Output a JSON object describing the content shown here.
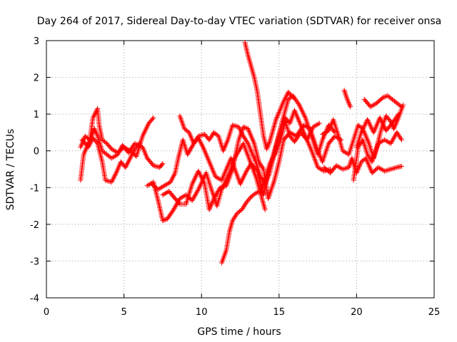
{
  "chart_data": {
    "type": "scatter",
    "title": "Day 264 of 2017, Sidereal Day-to-day VTEC variation (SDTVAR) for receiver onsa",
    "xlabel": "GPS time / hours",
    "ylabel": "SDTVAR / TECUs",
    "xlim": [
      0,
      25
    ],
    "ylim": [
      -4,
      3
    ],
    "xticks": [
      "0",
      "5",
      "10",
      "15",
      "20",
      "25"
    ],
    "yticks": [
      "-4",
      "-3",
      "-2",
      "-1",
      "0",
      "1",
      "2",
      "3"
    ],
    "grid": true,
    "legend": "none",
    "marker": "+",
    "series_color": "#ff0000",
    "series": [
      {
        "points": [
          [
            2.2,
            0.1
          ],
          [
            2.5,
            0.4
          ],
          [
            2.8,
            0.3
          ],
          [
            3.0,
            0.9
          ],
          [
            3.3,
            1.15
          ],
          [
            3.4,
            0.7
          ],
          [
            3.6,
            0.3
          ],
          [
            3.9,
            0.2
          ],
          [
            4.2,
            0.05
          ],
          [
            4.6,
            -0.05
          ],
          [
            5.0,
            0.1
          ],
          [
            5.4,
            0.0
          ],
          [
            5.8,
            -0.15
          ],
          [
            6.2,
            0.4
          ],
          [
            6.6,
            0.75
          ],
          [
            6.9,
            0.9
          ]
        ]
      },
      {
        "points": [
          [
            2.2,
            -0.8
          ],
          [
            2.4,
            -0.1
          ],
          [
            2.7,
            0.2
          ],
          [
            3.1,
            0.6
          ],
          [
            3.3,
            0.4
          ],
          [
            3.6,
            0.0
          ],
          [
            3.9,
            -0.1
          ],
          [
            4.2,
            -0.2
          ],
          [
            4.6,
            -0.1
          ],
          [
            4.9,
            0.15
          ],
          [
            5.3,
            -0.05
          ],
          [
            5.7,
            0.2
          ],
          [
            6.2,
            0.1
          ],
          [
            6.5,
            -0.2
          ],
          [
            6.9,
            -0.4
          ],
          [
            7.3,
            -0.45
          ],
          [
            7.5,
            -0.35
          ]
        ]
      },
      {
        "points": [
          [
            2.3,
            0.3
          ],
          [
            2.7,
            0.1
          ],
          [
            3.0,
            0.35
          ],
          [
            3.3,
            0.2
          ],
          [
            3.6,
            -0.3
          ],
          [
            3.8,
            -0.8
          ],
          [
            4.2,
            -0.85
          ],
          [
            4.5,
            -0.6
          ],
          [
            4.8,
            -0.3
          ],
          [
            5.1,
            -0.45
          ],
          [
            5.4,
            -0.2
          ],
          [
            5.7,
            0.05
          ],
          [
            6.0,
            0.2
          ]
        ]
      },
      {
        "points": [
          [
            6.5,
            -0.95
          ],
          [
            6.9,
            -0.85
          ],
          [
            7.2,
            -1.35
          ],
          [
            7.5,
            -1.9
          ],
          [
            7.8,
            -1.85
          ],
          [
            8.2,
            -1.6
          ],
          [
            8.6,
            -1.3
          ],
          [
            9.0,
            -1.2
          ],
          [
            9.4,
            -1.35
          ],
          [
            9.8,
            -1.05
          ],
          [
            10.3,
            -0.6
          ],
          [
            10.6,
            -1.0
          ],
          [
            11.0,
            -1.5
          ],
          [
            11.3,
            -1.05
          ],
          [
            11.8,
            -0.6
          ],
          [
            12.2,
            -0.15
          ],
          [
            12.7,
            0.2
          ],
          [
            13.1,
            -0.25
          ],
          [
            13.5,
            -0.7
          ],
          [
            13.9,
            -1.3
          ],
          [
            14.1,
            -1.6
          ]
        ]
      },
      {
        "points": [
          [
            6.8,
            -0.9
          ],
          [
            7.2,
            -1.05
          ],
          [
            7.6,
            -0.95
          ],
          [
            8.0,
            -0.85
          ],
          [
            8.3,
            -0.6
          ],
          [
            8.5,
            -0.2
          ],
          [
            8.8,
            0.3
          ],
          [
            9.1,
            -0.1
          ],
          [
            9.5,
            0.2
          ],
          [
            9.8,
            0.35
          ],
          [
            10.1,
            0.1
          ],
          [
            10.5,
            -0.3
          ],
          [
            10.9,
            -0.7
          ],
          [
            11.3,
            -0.8
          ],
          [
            11.6,
            -0.5
          ],
          [
            11.9,
            -0.2
          ],
          [
            12.2,
            -0.55
          ],
          [
            12.5,
            -0.9
          ],
          [
            12.9,
            -0.55
          ],
          [
            13.2,
            -0.35
          ],
          [
            13.6,
            -0.55
          ],
          [
            14.0,
            -1.2
          ],
          [
            14.3,
            -0.6
          ],
          [
            14.7,
            0.0
          ],
          [
            15.1,
            0.6
          ],
          [
            15.4,
            0.9
          ],
          [
            15.7,
            0.75
          ],
          [
            16.0,
            1.1
          ],
          [
            16.3,
            0.8
          ],
          [
            16.7,
            0.4
          ],
          [
            17.1,
            0.0
          ],
          [
            17.5,
            -0.45
          ],
          [
            17.9,
            -0.55
          ],
          [
            18.3,
            -0.5
          ]
        ]
      },
      {
        "points": [
          [
            7.5,
            -1.2
          ],
          [
            7.9,
            -1.1
          ],
          [
            8.3,
            -1.3
          ],
          [
            8.6,
            -1.45
          ],
          [
            9.0,
            -1.45
          ],
          [
            9.4,
            -0.9
          ],
          [
            9.8,
            -0.55
          ],
          [
            10.2,
            -0.9
          ],
          [
            10.5,
            -1.6
          ],
          [
            10.8,
            -1.3
          ],
          [
            11.2,
            -1.0
          ],
          [
            11.6,
            -0.95
          ],
          [
            12.0,
            -0.5
          ],
          [
            12.4,
            0.3
          ],
          [
            12.7,
            0.65
          ],
          [
            13.0,
            0.6
          ],
          [
            13.4,
            0.2
          ],
          [
            13.7,
            -0.3
          ],
          [
            14.0,
            -0.5
          ],
          [
            14.3,
            -1.3
          ],
          [
            14.7,
            -0.8
          ],
          [
            15.0,
            -0.3
          ],
          [
            15.3,
            0.3
          ],
          [
            15.7,
            0.5
          ],
          [
            16.1,
            0.4
          ],
          [
            16.6,
            0.7
          ],
          [
            17.0,
            0.6
          ],
          [
            17.4,
            0.1
          ],
          [
            17.8,
            -0.3
          ],
          [
            18.2,
            0.2
          ],
          [
            18.6,
            0.4
          ],
          [
            19.0,
            0.3
          ]
        ]
      },
      {
        "points": [
          [
            8.6,
            0.95
          ],
          [
            8.9,
            0.6
          ],
          [
            9.2,
            0.5
          ],
          [
            9.5,
            0.2
          ],
          [
            9.8,
            0.4
          ],
          [
            10.2,
            0.45
          ],
          [
            10.5,
            0.3
          ],
          [
            10.8,
            0.5
          ],
          [
            11.1,
            0.4
          ],
          [
            11.4,
            0.0
          ],
          [
            11.7,
            0.3
          ],
          [
            12.0,
            0.7
          ],
          [
            12.4,
            0.65
          ],
          [
            12.7,
            0.4
          ],
          [
            13.0,
            0.2
          ],
          [
            13.3,
            -0.1
          ],
          [
            13.5,
            -0.3
          ],
          [
            13.8,
            -0.7
          ],
          [
            14.1,
            -0.9
          ],
          [
            14.4,
            -0.6
          ],
          [
            14.8,
            0.1
          ],
          [
            15.2,
            0.8
          ],
          [
            15.6,
            1.4
          ],
          [
            15.9,
            1.5
          ],
          [
            16.3,
            1.25
          ],
          [
            16.7,
            0.9
          ],
          [
            17.1,
            0.4
          ],
          [
            17.5,
            -0.1
          ],
          [
            17.8,
            0.3
          ],
          [
            18.2,
            0.7
          ],
          [
            18.6,
            0.5
          ]
        ]
      },
      {
        "points": [
          [
            11.3,
            -3.05
          ],
          [
            11.6,
            -2.7
          ],
          [
            11.8,
            -2.2
          ],
          [
            12.0,
            -1.9
          ],
          [
            12.3,
            -1.7
          ],
          [
            12.6,
            -1.6
          ],
          [
            12.9,
            -1.4
          ],
          [
            13.2,
            -1.25
          ],
          [
            13.5,
            -1.15
          ],
          [
            13.8,
            -1.1
          ],
          [
            14.1,
            -0.75
          ],
          [
            14.4,
            -0.35
          ],
          [
            14.8,
            -0.05
          ],
          [
            15.1,
            0.3
          ],
          [
            15.4,
            0.8
          ],
          [
            15.7,
            0.4
          ],
          [
            16.0,
            0.25
          ],
          [
            16.4,
            0.5
          ],
          [
            16.8,
            0.3
          ],
          [
            17.2,
            0.65
          ],
          [
            17.6,
            0.75
          ]
        ]
      },
      {
        "points": [
          [
            12.8,
            2.95
          ],
          [
            13.0,
            2.6
          ],
          [
            13.2,
            2.3
          ],
          [
            13.4,
            2.0
          ],
          [
            13.6,
            1.6
          ],
          [
            13.8,
            1.0
          ],
          [
            14.0,
            0.4
          ],
          [
            14.2,
            0.05
          ],
          [
            14.4,
            0.25
          ],
          [
            14.6,
            0.55
          ],
          [
            14.8,
            0.85
          ],
          [
            15.0,
            1.05
          ],
          [
            15.3,
            1.35
          ],
          [
            15.6,
            1.6
          ],
          [
            15.9,
            1.45
          ]
        ]
      },
      {
        "points": [
          [
            17.9,
            -0.45
          ],
          [
            18.3,
            -0.6
          ],
          [
            18.7,
            -0.4
          ],
          [
            19.1,
            -0.5
          ],
          [
            19.5,
            -0.45
          ],
          [
            19.7,
            -0.2
          ],
          [
            20.0,
            -0.6
          ],
          [
            20.3,
            -0.3
          ],
          [
            20.6,
            -0.2
          ],
          [
            21.0,
            -0.6
          ],
          [
            21.4,
            -0.45
          ],
          [
            21.8,
            -0.55
          ],
          [
            22.2,
            -0.5
          ],
          [
            22.6,
            -0.45
          ],
          [
            22.9,
            -0.42
          ]
        ]
      },
      {
        "points": [
          [
            17.8,
            0.45
          ],
          [
            18.2,
            0.55
          ],
          [
            18.5,
            0.85
          ],
          [
            18.8,
            0.45
          ],
          [
            19.1,
            0.0
          ],
          [
            19.5,
            -0.1
          ],
          [
            19.8,
            0.3
          ],
          [
            20.1,
            0.7
          ],
          [
            20.4,
            0.6
          ],
          [
            20.8,
            0.2
          ],
          [
            21.1,
            -0.2
          ],
          [
            21.4,
            0.2
          ],
          [
            21.8,
            0.3
          ],
          [
            22.2,
            0.2
          ],
          [
            22.6,
            0.5
          ],
          [
            22.9,
            0.3
          ]
        ]
      },
      {
        "points": [
          [
            19.2,
            1.65
          ],
          [
            19.4,
            1.4
          ],
          [
            19.6,
            1.2
          ]
        ]
      },
      {
        "points": [
          [
            19.8,
            -0.8
          ],
          [
            20.1,
            0.1
          ],
          [
            20.4,
            0.3
          ],
          [
            20.7,
            -0.1
          ],
          [
            21.0,
            -0.3
          ],
          [
            21.3,
            0.1
          ],
          [
            21.6,
            0.6
          ],
          [
            21.9,
            0.95
          ],
          [
            22.2,
            0.8
          ],
          [
            22.4,
            0.6
          ],
          [
            22.7,
            0.9
          ],
          [
            23.0,
            1.25
          ]
        ]
      },
      {
        "points": [
          [
            20.5,
            1.4
          ],
          [
            20.9,
            1.2
          ],
          [
            21.3,
            1.3
          ],
          [
            21.7,
            1.45
          ],
          [
            22.0,
            1.5
          ],
          [
            22.3,
            1.4
          ],
          [
            22.6,
            1.3
          ],
          [
            22.9,
            1.2
          ]
        ]
      },
      {
        "points": [
          [
            20.0,
            0.1
          ],
          [
            20.3,
            0.5
          ],
          [
            20.7,
            0.85
          ],
          [
            21.1,
            0.5
          ],
          [
            21.5,
            0.9
          ],
          [
            21.9,
            0.55
          ],
          [
            22.3,
            0.75
          ],
          [
            22.7,
            1.0
          ]
        ]
      }
    ]
  }
}
